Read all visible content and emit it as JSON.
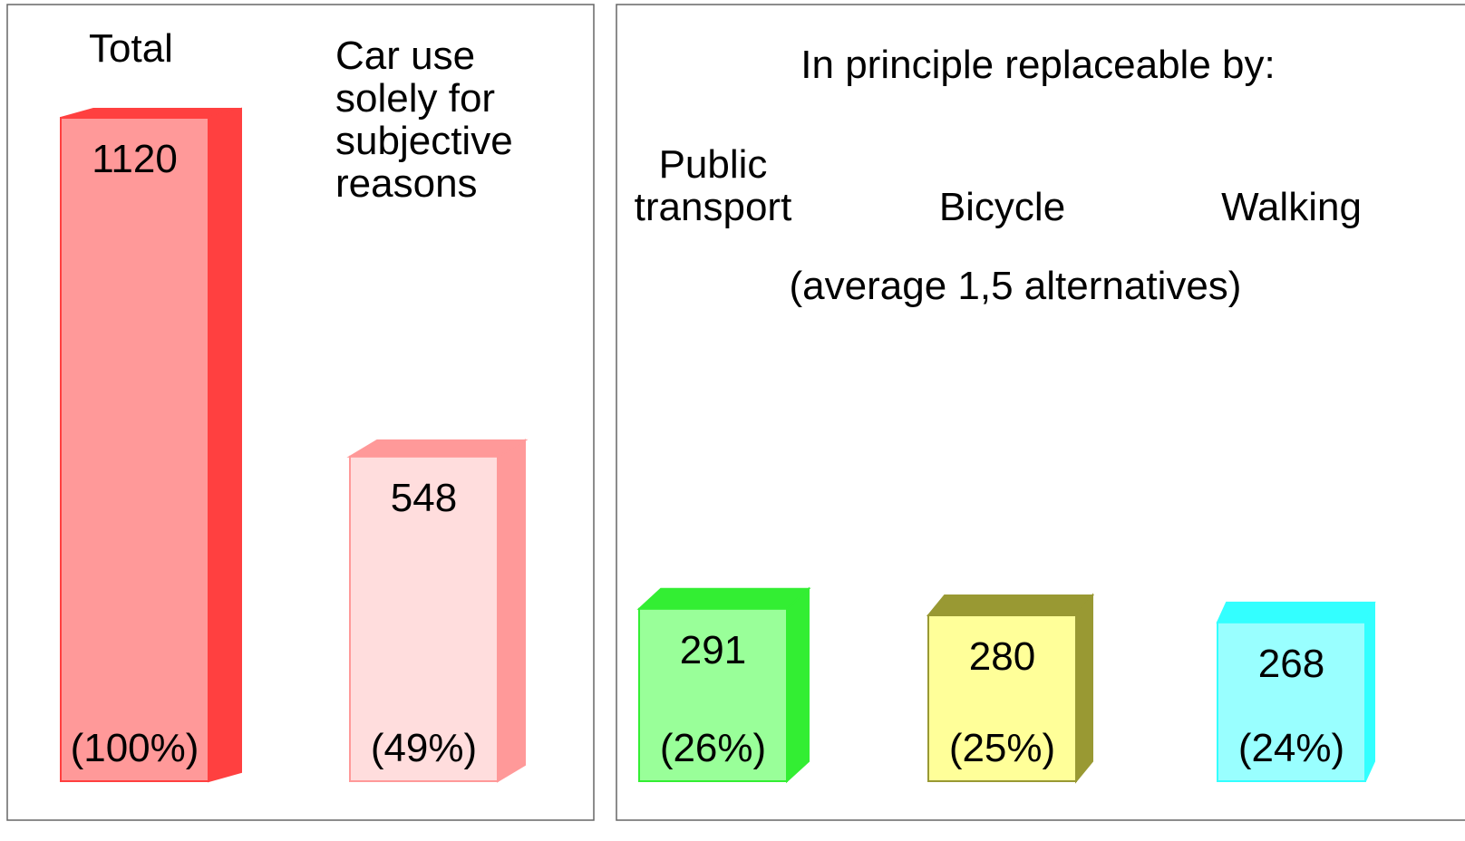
{
  "chart_data": [
    {
      "type": "bar",
      "categories": [
        "Total",
        "Car use solely for subjective reasons"
      ],
      "values": [
        1120,
        548
      ],
      "share_labels": [
        "(100%)",
        "(49%)"
      ],
      "colors": [
        "#ff9999",
        "#ffdddd"
      ],
      "side_colors": [
        "#ff4040",
        "#ff9999"
      ]
    },
    {
      "type": "bar",
      "title": "In principle replaceable by:",
      "subtitle": "(average 1,5 alternatives)",
      "categories": [
        "Public transport",
        "Bicycle",
        "Walking"
      ],
      "values": [
        291,
        280,
        268
      ],
      "share_labels": [
        "(26%)",
        "(25%)",
        "(24%)"
      ],
      "colors": [
        "#99ff99",
        "#ffff99",
        "#99ffff"
      ],
      "side_colors": [
        "#33ee33",
        "#999933",
        "#33ffff"
      ]
    }
  ]
}
